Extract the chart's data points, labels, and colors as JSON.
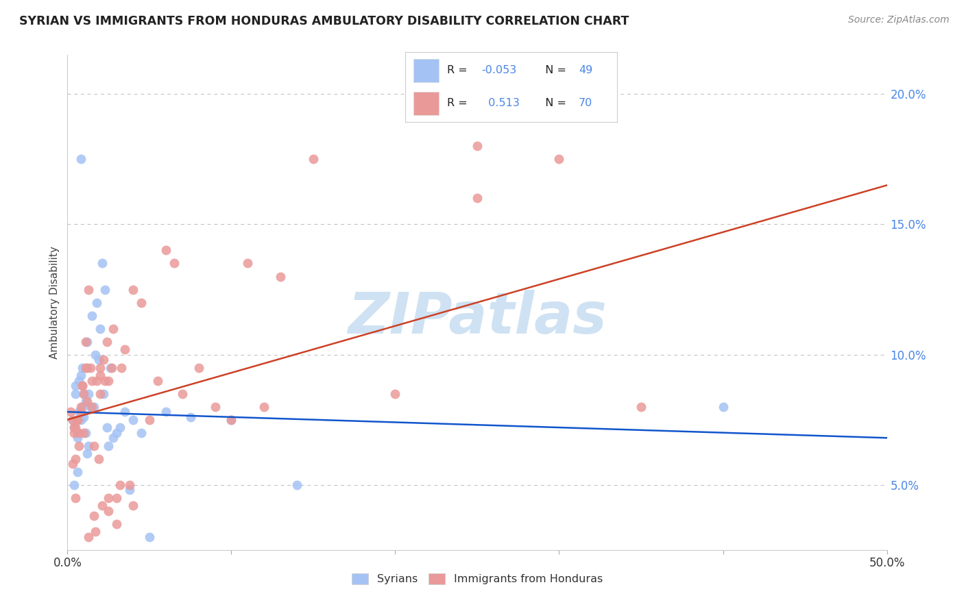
{
  "title": "SYRIAN VS IMMIGRANTS FROM HONDURAS AMBULATORY DISABILITY CORRELATION CHART",
  "source": "Source: ZipAtlas.com",
  "ylabel": "Ambulatory Disability",
  "xlim": [
    0,
    50
  ],
  "ylim": [
    2.5,
    21.5
  ],
  "yticks": [
    5.0,
    10.0,
    15.0,
    20.0
  ],
  "ytick_labels": [
    "5.0%",
    "10.0%",
    "15.0%",
    "20.0%"
  ],
  "syrians_R": -0.053,
  "syrians_N": 49,
  "honduras_R": 0.513,
  "honduras_N": 70,
  "syrians_color": "#a4c2f4",
  "honduras_color": "#ea9999",
  "syrians_line_color": "#1155cc",
  "honduras_line_color": "#cc4125",
  "watermark_color": "#cfe2f3",
  "legend_color": "#4a86e8",
  "background_color": "#ffffff",
  "grid_color": "#bbbbbb",
  "syrians_x": [
    0.3,
    0.4,
    0.5,
    0.5,
    0.6,
    0.6,
    0.7,
    0.7,
    0.8,
    0.8,
    0.9,
    0.9,
    1.0,
    1.0,
    1.1,
    1.1,
    1.2,
    1.2,
    1.3,
    1.3,
    1.4,
    1.5,
    1.6,
    1.7,
    1.8,
    1.9,
    2.0,
    2.1,
    2.2,
    2.3,
    2.4,
    2.5,
    2.6,
    2.8,
    3.0,
    3.2,
    3.5,
    3.8,
    4.0,
    4.5,
    5.0,
    6.0,
    7.5,
    10.0,
    14.0,
    0.4,
    0.6,
    0.8,
    40.0
  ],
  "syrians_y": [
    7.5,
    7.2,
    8.8,
    8.5,
    7.0,
    6.8,
    7.8,
    9.0,
    9.2,
    7.5,
    8.0,
    9.5,
    8.5,
    7.6,
    8.2,
    7.0,
    10.5,
    6.2,
    8.5,
    6.5,
    8.0,
    11.5,
    8.0,
    10.0,
    12.0,
    9.8,
    11.0,
    13.5,
    8.5,
    12.5,
    7.2,
    6.5,
    9.5,
    6.8,
    7.0,
    7.2,
    7.8,
    4.8,
    7.5,
    7.0,
    3.0,
    7.8,
    7.6,
    7.5,
    5.0,
    5.0,
    5.5,
    17.5,
    8.0
  ],
  "honduras_x": [
    0.2,
    0.3,
    0.4,
    0.5,
    0.5,
    0.6,
    0.7,
    0.7,
    0.8,
    0.8,
    0.9,
    1.0,
    1.0,
    1.1,
    1.2,
    1.2,
    1.3,
    1.4,
    1.5,
    1.5,
    1.6,
    1.7,
    1.8,
    1.9,
    2.0,
    2.0,
    2.1,
    2.2,
    2.3,
    2.4,
    2.5,
    2.5,
    2.7,
    2.8,
    3.0,
    3.2,
    3.3,
    3.5,
    3.8,
    4.0,
    4.5,
    5.0,
    5.5,
    6.0,
    6.5,
    7.0,
    8.0,
    9.0,
    10.0,
    11.0,
    12.0,
    13.0,
    15.0,
    20.0,
    25.0,
    30.0,
    35.0,
    0.4,
    0.6,
    0.9,
    1.1,
    1.3,
    1.6,
    2.0,
    2.5,
    3.0,
    4.0,
    25.0,
    0.3,
    0.5
  ],
  "honduras_y": [
    7.8,
    7.5,
    7.0,
    7.2,
    6.0,
    7.5,
    7.0,
    6.5,
    8.0,
    7.8,
    8.8,
    8.5,
    7.0,
    10.5,
    8.2,
    9.5,
    12.5,
    9.5,
    8.0,
    9.0,
    6.5,
    3.2,
    9.0,
    6.0,
    8.5,
    9.2,
    4.2,
    9.8,
    9.0,
    10.5,
    4.5,
    9.0,
    9.5,
    11.0,
    4.5,
    5.0,
    9.5,
    10.2,
    5.0,
    12.5,
    12.0,
    7.5,
    9.0,
    14.0,
    13.5,
    8.5,
    9.5,
    8.0,
    7.5,
    13.5,
    8.0,
    13.0,
    17.5,
    8.5,
    16.0,
    17.5,
    8.0,
    7.2,
    7.5,
    8.8,
    9.5,
    3.0,
    3.8,
    9.5,
    4.0,
    3.5,
    4.2,
    18.0,
    5.8,
    4.5
  ]
}
